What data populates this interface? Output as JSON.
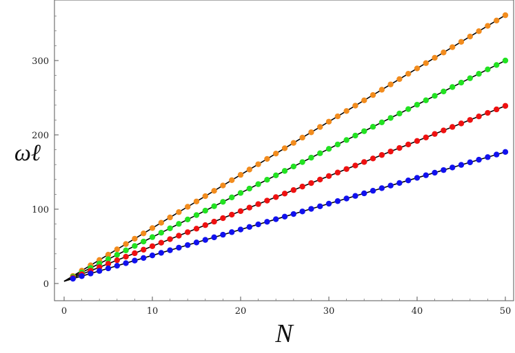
{
  "chart_data": {
    "type": "line",
    "title": "",
    "xlabel": "N",
    "ylabel": "ωℓ",
    "xlim": [
      -1,
      51
    ],
    "ylim": [
      -20,
      380
    ],
    "x_ticks": [
      0,
      10,
      20,
      30,
      40,
      50
    ],
    "y_ticks": [
      0,
      100,
      200,
      300
    ],
    "x_tick_labels": [
      "0",
      "10",
      "20",
      "30",
      "40",
      "50"
    ],
    "y_tick_labels": [
      "0",
      "100",
      "200",
      "300"
    ],
    "grid": false,
    "legend": "none",
    "marker": "circle",
    "fit_line_color": "#000000",
    "x": [
      0,
      1,
      2,
      3,
      4,
      5,
      6,
      7,
      8,
      9,
      10,
      11,
      12,
      13,
      14,
      15,
      16,
      17,
      18,
      19,
      20,
      21,
      22,
      23,
      24,
      25,
      26,
      27,
      28,
      29,
      30,
      31,
      32,
      33,
      34,
      35,
      36,
      37,
      38,
      39,
      40,
      41,
      42,
      43,
      44,
      45,
      46,
      47,
      48,
      49,
      50
    ],
    "series": [
      {
        "color": "#f28c1e",
        "intercept": 3.0,
        "slope": 7.16,
        "points_from": 1
      },
      {
        "color": "#22e222",
        "intercept": 3.0,
        "slope": 5.94,
        "points_from": 1
      },
      {
        "color": "#ee1111",
        "intercept": 3.0,
        "slope": 4.72,
        "points_from": 1
      },
      {
        "color": "#1111ee",
        "intercept": 3.0,
        "slope": 3.48,
        "points_from": 1
      }
    ]
  }
}
